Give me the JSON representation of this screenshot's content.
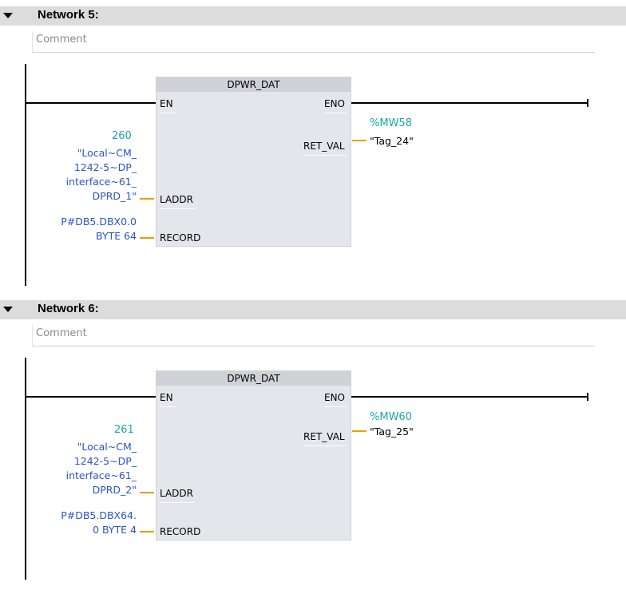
{
  "networks": [
    {
      "title": "Network 5:",
      "comment": "Comment",
      "block": {
        "name": "DPWR_DAT",
        "pins": {
          "en": "EN",
          "eno": "ENO",
          "ret_val": "RET_VAL",
          "laddr": "LADDR",
          "record": "RECORD"
        }
      },
      "laddr_value": "260",
      "laddr_lines": [
        "\"Local~CM_",
        "1242-5~DP_",
        "interface~61_",
        "DPRD_1\""
      ],
      "record_lines": [
        "P#DB5.DBX0.0",
        "BYTE 64"
      ],
      "ret_address": "%MW58",
      "ret_tag": "\"Tag_24\""
    },
    {
      "title": "Network 6:",
      "comment": "Comment",
      "block": {
        "name": "DPWR_DAT",
        "pins": {
          "en": "EN",
          "eno": "ENO",
          "ret_val": "RET_VAL",
          "laddr": "LADDR",
          "record": "RECORD"
        }
      },
      "laddr_value": "261",
      "laddr_lines": [
        "\"Local~CM_",
        "1242-5~DP_",
        "interface~61_",
        "DPRD_2\""
      ],
      "record_lines": [
        "P#DB5.DBX64.",
        "0 BYTE 4"
      ],
      "ret_address": "%MW60",
      "ret_tag": "\"Tag_25\""
    }
  ],
  "colors": {
    "header_bg": "#dcdcdc",
    "block_bg": "#e3e6ea",
    "operand_blue": "#2b55c7",
    "address_teal": "#1aa7a7",
    "connector_orange": "#f39a00"
  }
}
